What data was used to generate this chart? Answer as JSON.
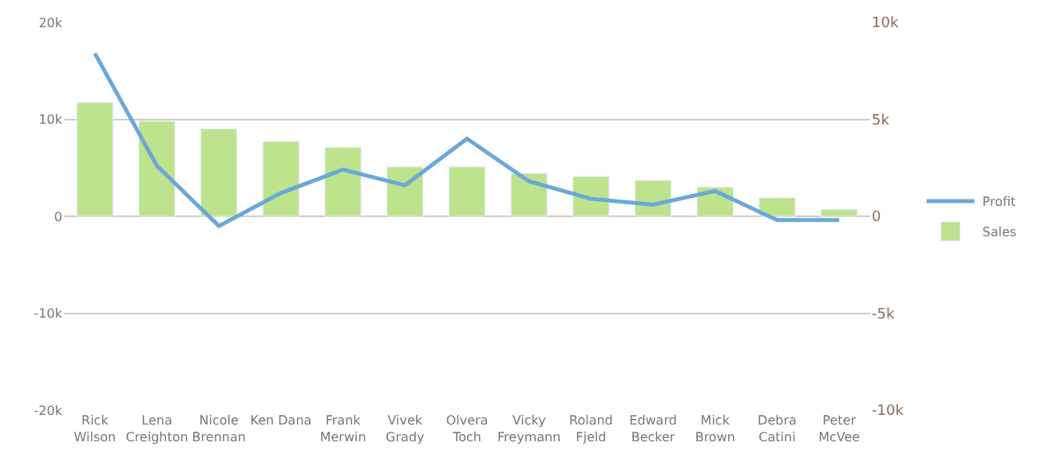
{
  "chart_data": {
    "type": "bar",
    "categories": [
      "Rick\nWilson",
      "Lena\nCreighton",
      "Nicole\nBrennan",
      "Ken Dana",
      "Frank\nMerwin",
      "Vivek\nGrady",
      "Olvera\nToch",
      "Vicky\nFreymann",
      "Roland\nFjeld",
      "Edward\nBecker",
      "Mick\nBrown",
      "Debra\nCatini",
      "Peter\nMcVee"
    ],
    "series": [
      {
        "name": "Profit",
        "type": "line",
        "axis": "y2",
        "color": "#6aa8d8",
        "values": [
          8400,
          2600,
          -500,
          1200,
          2400,
          1600,
          4000,
          1800,
          900,
          600,
          1300,
          -200,
          -200
        ]
      },
      {
        "name": "Sales",
        "color": "#bde38d",
        "values": [
          11700,
          9800,
          9000,
          7700,
          7100,
          5100,
          5100,
          4400,
          4100,
          3700,
          3000,
          1900,
          700
        ]
      }
    ],
    "ylim": [
      -20000,
      20000
    ],
    "yticks": [
      {
        "value": -20000,
        "label": "-20k"
      },
      {
        "value": -10000,
        "label": "-10k"
      },
      {
        "value": 0,
        "label": "0"
      },
      {
        "value": 10000,
        "label": "10k"
      },
      {
        "value": 20000,
        "label": "20k"
      }
    ],
    "y2lim": [
      -10000,
      10000
    ],
    "y2ticks": [
      {
        "value": -10000,
        "label": "-10k"
      },
      {
        "value": -5000,
        "label": "-5k"
      },
      {
        "value": 0,
        "label": "0"
      },
      {
        "value": 5000,
        "label": "5k"
      },
      {
        "value": 10000,
        "label": "10k"
      }
    ],
    "grid": "y",
    "legend": "right",
    "marker": "none",
    "line_style": "solid"
  }
}
